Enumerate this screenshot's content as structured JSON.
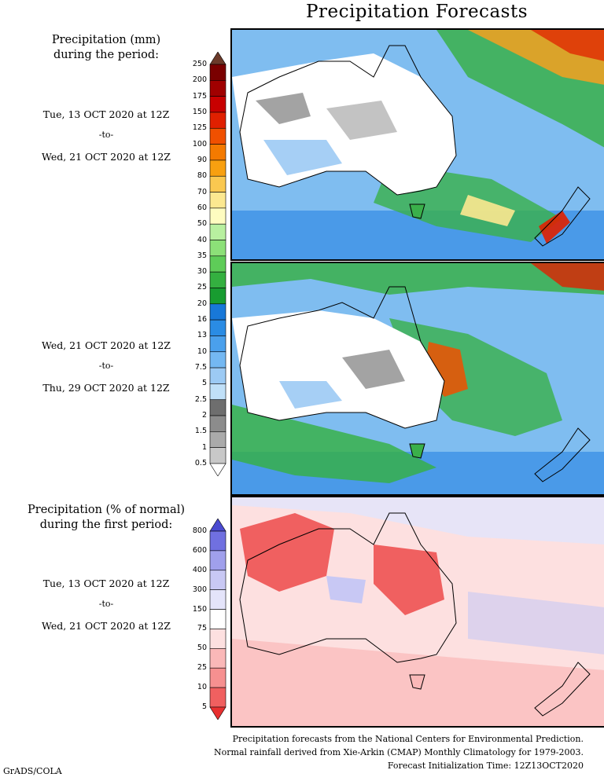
{
  "title": "Precipitation Forecasts",
  "precip_heading": [
    "Precipitation (mm)",
    "during the period:"
  ],
  "period1": {
    "start": "Tue, 13 OCT 2020 at 12Z",
    "sep": "-to-",
    "end": "Wed, 21 OCT 2020 at 12Z"
  },
  "period2": {
    "start": "Wed, 21 OCT 2020 at 12Z",
    "sep": "-to-",
    "end": "Thu, 29 OCT 2020 at 12Z"
  },
  "anomaly_heading": [
    "Precipitation (% of normal)",
    "during the first period:"
  ],
  "period3": {
    "start": "Tue, 13 OCT 2020 at 12Z",
    "sep": "-to-",
    "end": "Wed, 21 OCT 2020 at 12Z"
  },
  "precip_scale": {
    "levels": [
      "250",
      "200",
      "175",
      "150",
      "125",
      "100",
      "90",
      "80",
      "70",
      "60",
      "50",
      "40",
      "35",
      "30",
      "25",
      "20",
      "16",
      "13",
      "10",
      "7.5",
      "5",
      "2.5",
      "2",
      "1.5",
      "1",
      "0.5"
    ],
    "colors": [
      "#6b3a2a",
      "#7a0000",
      "#a00000",
      "#c80000",
      "#e02000",
      "#f05000",
      "#f47a00",
      "#f8a010",
      "#fac850",
      "#fce890",
      "#fefcc0",
      "#b8f0a0",
      "#8ce078",
      "#5ecc58",
      "#34b040",
      "#189c30",
      "#1878d8",
      "#2a8ce4",
      "#4aa0ec",
      "#74b8f2",
      "#9ccaf4",
      "#c0e0f8",
      "#6e6e6e",
      "#8c8c8c",
      "#aaaaaa",
      "#c8c8c8",
      "#ffffff"
    ]
  },
  "percent_scale": {
    "levels": [
      "800",
      "600",
      "400",
      "300",
      "150",
      "75",
      "50",
      "25",
      "10",
      "5"
    ],
    "colors": [
      "#4a4ad0",
      "#7070e0",
      "#a0a0ec",
      "#c8c8f4",
      "#e4e4fa",
      "#ffffff",
      "#fde0e0",
      "#fab8b8",
      "#f69090",
      "#f06060",
      "#e83030"
    ]
  },
  "map_colors": {
    "land_dry": "#ffffff",
    "ocean_blue": "#7fbdf0",
    "coast": "#000000"
  },
  "footer": [
    "Precipitation forecasts from the National Centers for Environmental Prediction.",
    "Normal rainfall derived from Xie-Arkin (CMAP) Monthly Climatology for 1979-2003.",
    "Forecast Initialization Time: 12Z13OCT2020"
  ],
  "credit": "GrADS/COLA"
}
